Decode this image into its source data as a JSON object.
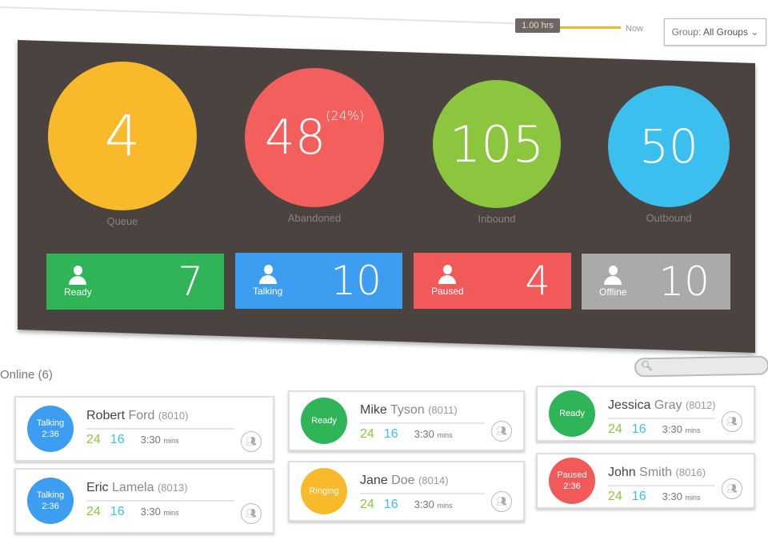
{
  "timeline": {
    "range": "1.00 hrs",
    "now": "Now"
  },
  "group": {
    "label": "Group:",
    "value": "All Groups"
  },
  "metrics": [
    {
      "value": "4",
      "label": "Queue",
      "color": "#f8b92b"
    },
    {
      "value": "48",
      "extra": "(24%)",
      "label": "Abandoned",
      "color": "#f25f5c"
    },
    {
      "value": "105",
      "label": "Inbound",
      "color": "#8cc63f"
    },
    {
      "value": "50",
      "label": "Outbound",
      "color": "#3bbfef"
    }
  ],
  "statuses": [
    {
      "label": "Ready",
      "count": "7",
      "color": "#2fb457"
    },
    {
      "label": "Talking",
      "count": "10",
      "color": "#3d9df0"
    },
    {
      "label": "Paused",
      "count": "4",
      "color": "#f25a5a"
    },
    {
      "label": "Offline",
      "count": "10",
      "color": "#aaaaaa"
    }
  ],
  "online": {
    "title": "Online (6)"
  },
  "agents": [
    {
      "first": "Robert",
      "last": "Ford",
      "ext": "(8010)",
      "status": "Talking",
      "time": "2:36",
      "a": "24",
      "b": "16",
      "dur": "3:30",
      "unit": "mins",
      "color": "#3d9df0"
    },
    {
      "first": "Mike",
      "last": "Tyson",
      "ext": "(8011)",
      "status": "Ready",
      "time": "",
      "a": "24",
      "b": "16",
      "dur": "3:30",
      "unit": "mins",
      "color": "#2fb457"
    },
    {
      "first": "Jessica",
      "last": "Gray",
      "ext": "(8012)",
      "status": "Ready",
      "time": "",
      "a": "24",
      "b": "16",
      "dur": "3:30",
      "unit": "mins",
      "color": "#2fb457"
    },
    {
      "first": "Eric",
      "last": "Lamela",
      "ext": "(8013)",
      "status": "Talking",
      "time": "2:36",
      "a": "24",
      "b": "16",
      "dur": "3:30",
      "unit": "mins",
      "color": "#3d9df0"
    },
    {
      "first": "Jane",
      "last": "Doe",
      "ext": "(8014)",
      "status": "Ringing",
      "time": "",
      "a": "24",
      "b": "16",
      "dur": "3:30",
      "unit": "mins",
      "color": "#f8b92b"
    },
    {
      "first": "John",
      "last": "Smith",
      "ext": "(8016)",
      "status": "Paused",
      "time": "2:36",
      "a": "24",
      "b": "16",
      "dur": "3:30",
      "unit": "mins",
      "color": "#f25a5a"
    }
  ]
}
